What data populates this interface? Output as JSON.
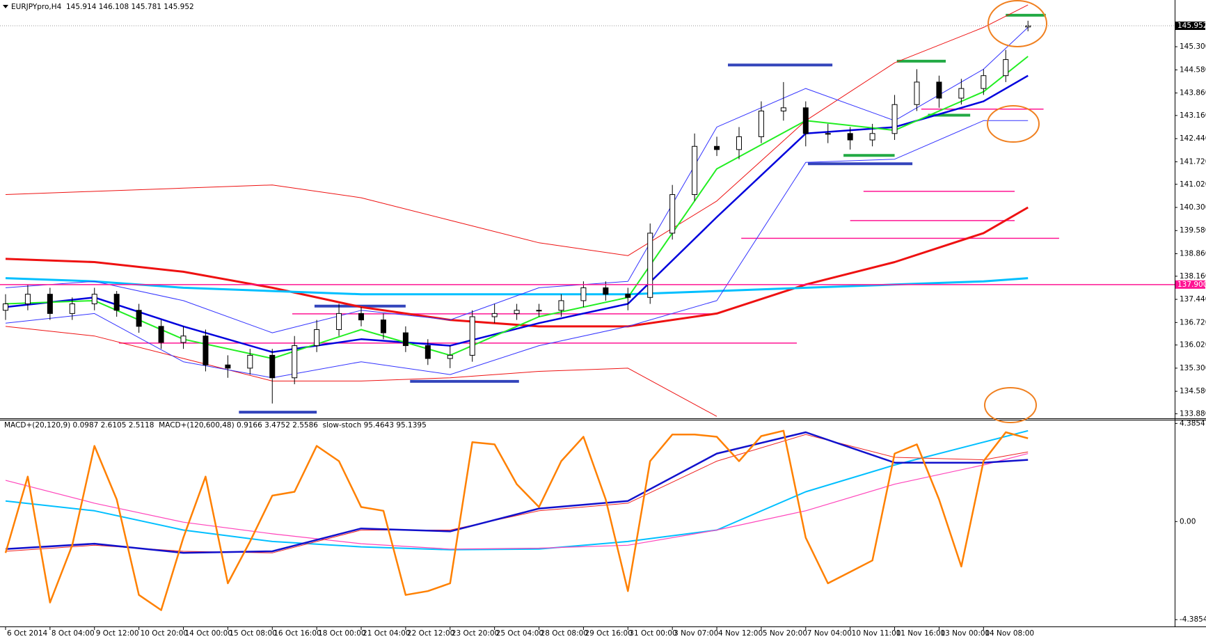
{
  "chart_data": [
    {
      "type": "candlestick",
      "title": "EURJPYpro,H4  145.914 146.108 145.781 145.952",
      "xlim": [
        -0.25,
        52.6
      ],
      "ylim": [
        133.76,
        146.71
      ],
      "yticks": [
        {
          "value": 133.88,
          "label": "133.880"
        },
        {
          "value": 134.58,
          "label": "134.580"
        },
        {
          "value": 135.3,
          "label": "135.300"
        },
        {
          "value": 136.02,
          "label": "136.020"
        },
        {
          "value": 136.72,
          "label": "136.720"
        },
        {
          "value": 137.44,
          "label": "137.440"
        },
        {
          "value": 138.16,
          "label": "138.160"
        },
        {
          "value": 138.86,
          "label": "138.860"
        },
        {
          "value": 139.58,
          "label": "139.580"
        },
        {
          "value": 140.3,
          "label": "140.300"
        },
        {
          "value": 141.02,
          "label": "141.020"
        },
        {
          "value": 141.72,
          "label": "141.720"
        },
        {
          "value": 142.44,
          "label": "142.440"
        },
        {
          "value": 143.16,
          "label": "143.160"
        },
        {
          "value": 143.86,
          "label": "143.860"
        },
        {
          "value": 144.58,
          "label": "144.580"
        },
        {
          "value": 145.3,
          "label": "145.300"
        }
      ],
      "x": [
        0,
        1,
        2,
        3,
        4,
        5,
        6,
        7,
        8,
        9,
        10,
        11,
        12,
        13,
        14,
        15,
        16,
        17,
        18,
        19,
        20,
        21,
        22,
        23,
        24,
        25,
        26,
        27,
        28,
        29,
        30,
        31,
        32,
        33,
        34,
        35,
        36,
        37,
        38,
        39,
        40,
        41,
        42,
        43,
        44,
        45,
        46
      ],
      "open": [
        137.1,
        137.3,
        137.6,
        137.0,
        137.3,
        137.6,
        137.1,
        136.6,
        136.1,
        136.3,
        135.4,
        135.3,
        135.7,
        135.0,
        136.0,
        136.5,
        137.0,
        136.8,
        136.4,
        136.0,
        135.6,
        135.7,
        136.9,
        137.0,
        137.1,
        137.1,
        137.4,
        137.8,
        137.6,
        137.5,
        139.5,
        140.7,
        142.2,
        142.1,
        142.5,
        143.3,
        143.4,
        142.6,
        142.6,
        142.4,
        142.6,
        143.5,
        144.2,
        143.7,
        144.0,
        144.4,
        145.914
      ],
      "high": [
        137.6,
        137.9,
        137.8,
        137.5,
        137.8,
        137.7,
        137.3,
        136.8,
        136.6,
        136.5,
        135.7,
        135.9,
        135.9,
        136.3,
        136.8,
        137.3,
        137.2,
        137.0,
        136.6,
        136.2,
        136.0,
        137.1,
        137.3,
        137.3,
        137.3,
        137.6,
        138.0,
        138.0,
        137.8,
        139.8,
        141.0,
        142.6,
        142.5,
        142.8,
        143.6,
        144.2,
        143.6,
        142.9,
        142.8,
        142.9,
        143.8,
        144.6,
        144.4,
        144.3,
        144.6,
        145.2,
        146.108
      ],
      "low": [
        136.8,
        137.1,
        136.8,
        136.8,
        137.1,
        136.9,
        136.4,
        135.9,
        135.9,
        135.2,
        135.0,
        135.1,
        134.2,
        134.8,
        135.8,
        136.3,
        136.6,
        136.2,
        135.8,
        135.4,
        135.3,
        135.5,
        136.7,
        136.8,
        136.9,
        136.9,
        137.2,
        137.4,
        137.1,
        137.3,
        139.3,
        140.5,
        141.9,
        141.8,
        142.3,
        143.0,
        142.2,
        142.3,
        142.1,
        142.2,
        142.4,
        143.3,
        143.4,
        143.5,
        143.8,
        144.2,
        145.781
      ],
      "close": [
        137.3,
        137.6,
        137.0,
        137.3,
        137.6,
        137.1,
        136.6,
        136.1,
        136.3,
        135.4,
        135.3,
        135.7,
        135.0,
        136.0,
        136.5,
        137.0,
        136.8,
        136.4,
        136.0,
        135.6,
        135.7,
        136.9,
        137.0,
        137.1,
        137.1,
        137.4,
        137.8,
        137.6,
        137.5,
        139.5,
        140.7,
        142.2,
        142.1,
        142.5,
        143.3,
        143.4,
        142.6,
        142.6,
        142.4,
        142.6,
        143.5,
        144.2,
        143.7,
        144.0,
        144.4,
        144.9,
        145.952
      ],
      "up_color": "#ffffff",
      "down_color": "#000000",
      "overlays": [
        {
          "color": "#ee1111",
          "width": 1,
          "x": [
            0,
            4,
            8,
            12,
            16,
            20,
            24,
            28,
            32,
            36,
            40,
            44,
            46
          ],
          "values": [
            140.7,
            140.8,
            140.9,
            141.0,
            140.6,
            139.9,
            139.2,
            138.8,
            140.5,
            143.0,
            144.8,
            145.9,
            146.6
          ]
        },
        {
          "color": "#ee1111",
          "width": 1,
          "x": [
            0,
            4,
            8,
            12,
            16,
            20,
            24,
            28,
            32,
            36,
            40,
            44,
            46
          ],
          "values": [
            136.6,
            136.3,
            135.6,
            134.9,
            134.9,
            135.0,
            135.2,
            135.3,
            133.8,
            null,
            null,
            null,
            null
          ]
        },
        {
          "color": "#ee1111",
          "width": 3,
          "x": [
            0,
            4,
            8,
            12,
            16,
            20,
            24,
            28,
            32,
            36,
            40,
            44,
            46
          ],
          "values": [
            138.7,
            138.6,
            138.3,
            137.8,
            137.2,
            136.8,
            136.6,
            136.6,
            137.0,
            137.9,
            138.6,
            139.5,
            140.3
          ]
        },
        {
          "color": "#00bfff",
          "width": 3,
          "x": [
            0,
            4,
            8,
            12,
            16,
            20,
            24,
            28,
            32,
            36,
            40,
            44,
            46
          ],
          "values": [
            138.1,
            138.0,
            137.8,
            137.7,
            137.6,
            137.6,
            137.6,
            137.6,
            137.7,
            137.8,
            137.9,
            138.0,
            138.1
          ]
        },
        {
          "color": "#3333ff",
          "width": 1,
          "x": [
            0,
            4,
            8,
            12,
            16,
            20,
            24,
            28,
            32,
            36,
            40,
            44,
            46
          ],
          "values": [
            137.8,
            138.0,
            137.4,
            136.4,
            137.1,
            136.8,
            137.8,
            138.0,
            142.8,
            144.0,
            143.0,
            144.6,
            145.9
          ]
        },
        {
          "color": "#3333ff",
          "width": 1,
          "x": [
            0,
            4,
            8,
            12,
            16,
            20,
            24,
            28,
            32,
            36,
            40,
            44,
            46
          ],
          "values": [
            136.7,
            137.0,
            135.5,
            135.0,
            135.5,
            135.1,
            136.0,
            136.6,
            137.4,
            141.7,
            141.8,
            143.0,
            143.0
          ]
        },
        {
          "color": "#0000dd",
          "width": 2.5,
          "x": [
            0,
            4,
            8,
            12,
            16,
            20,
            24,
            28,
            32,
            36,
            40,
            44,
            46
          ],
          "values": [
            137.2,
            137.5,
            136.6,
            135.8,
            136.2,
            136.0,
            136.7,
            137.3,
            140.0,
            142.6,
            142.8,
            143.6,
            144.4
          ]
        },
        {
          "color": "#22ee22",
          "width": 2,
          "x": [
            0,
            4,
            8,
            12,
            16,
            20,
            24,
            28,
            32,
            36,
            40,
            44,
            46
          ],
          "values": [
            137.3,
            137.4,
            136.2,
            135.6,
            136.5,
            135.7,
            136.9,
            137.5,
            141.5,
            143.0,
            142.7,
            143.9,
            145.0
          ]
        }
      ],
      "levels": [
        {
          "color": "#ff1493",
          "width": 1.5,
          "value": 136.99,
          "x": [
            12.9,
            31.7
          ]
        },
        {
          "color": "#ff1493",
          "width": 1.5,
          "value": 136.08,
          "x": [
            5.1,
            35.6
          ]
        },
        {
          "color": "#ff1493",
          "width": 1.5,
          "value": 140.8,
          "x": [
            38.6,
            45.4
          ]
        },
        {
          "color": "#ff1493",
          "width": 1.5,
          "value": 139.89,
          "x": [
            38.0,
            45.4
          ]
        },
        {
          "color": "#ff1493",
          "width": 1.5,
          "value": 139.34,
          "x": [
            33.1,
            47.4
          ]
        },
        {
          "color": "#ff1493",
          "width": 1.5,
          "value": 143.36,
          "x": [
            41.2,
            46.7
          ]
        },
        {
          "color": "#3344bb",
          "width": 4,
          "value": 144.73,
          "x": [
            32.5,
            37.2
          ]
        },
        {
          "color": "#3344bb",
          "width": 4,
          "value": 137.23,
          "x": [
            13.9,
            18.0
          ]
        },
        {
          "color": "#3344bb",
          "width": 4,
          "value": 133.93,
          "x": [
            10.5,
            14.0
          ]
        },
        {
          "color": "#3344bb",
          "width": 4,
          "value": 134.89,
          "x": [
            18.2,
            23.1
          ]
        },
        {
          "color": "#3344bb",
          "width": 4,
          "value": 141.66,
          "x": [
            36.1,
            40.8
          ]
        },
        {
          "color": "#22aa44",
          "width": 4,
          "value": 146.28,
          "x": [
            45.0,
            46.8
          ]
        },
        {
          "color": "#22aa44",
          "width": 4,
          "value": 144.85,
          "x": [
            40.1,
            42.3
          ]
        },
        {
          "color": "#22aa44",
          "width": 4,
          "value": 143.17,
          "x": [
            41.5,
            43.4
          ]
        },
        {
          "color": "#22aa44",
          "width": 4,
          "value": 141.92,
          "x": [
            37.7,
            40.0
          ]
        }
      ],
      "price_lines": [
        {
          "value": 145.952,
          "label": "145.952",
          "color": "#000000",
          "style": "dotted"
        },
        {
          "value": 137.9,
          "label": "137.900",
          "color": "#ff1493",
          "style": "solid"
        }
      ]
    },
    {
      "type": "line",
      "title": "MACD+(20,120,9) 0.0987 2.6105 2.5118  MACD+(120,600,48) 0.9166 3.4752 2.5586  slow-stoch 95.4643 95.1395",
      "xlim": [
        -0.25,
        52.6
      ],
      "ylim": [
        -4.69,
        4.52
      ],
      "yticks": [
        4.3854,
        {
          "value": 0,
          "label": "0.00"
        },
        -4.3854
      ],
      "xticks": [
        {
          "value": 0,
          "label": "6 Oct 2014"
        },
        {
          "value": 2,
          "label": "8 Oct 04:00"
        },
        {
          "value": 4,
          "label": "9 Oct 12:00"
        },
        {
          "value": 6,
          "label": "10 Oct 20:00"
        },
        {
          "value": 8,
          "label": "14 Oct 00:00"
        },
        {
          "value": 10,
          "label": "15 Oct 08:00"
        },
        {
          "value": 12,
          "label": "16 Oct 16:00"
        },
        {
          "value": 14,
          "label": "18 Oct 00:00"
        },
        {
          "value": 16,
          "label": "21 Oct 04:00"
        },
        {
          "value": 18,
          "label": "22 Oct 12:00"
        },
        {
          "value": 20,
          "label": "23 Oct 20:00"
        },
        {
          "value": 22,
          "label": "25 Oct 04:00"
        },
        {
          "value": 24,
          "label": "28 Oct 08:00"
        },
        {
          "value": 26,
          "label": "29 Oct 16:00"
        },
        {
          "value": 28,
          "label": "31 Oct 00:00"
        },
        {
          "value": 30,
          "label": "3 Nov 07:00"
        },
        {
          "value": 32,
          "label": "4 Nov 12:00"
        },
        {
          "value": 34,
          "label": "5 Nov 20:00"
        },
        {
          "value": 36,
          "label": "7 Nov 04:00"
        },
        {
          "value": 38,
          "label": "10 Nov 11:00"
        },
        {
          "value": 40,
          "label": "11 Nov 16:00"
        },
        {
          "value": 42,
          "label": "13 Nov 00:00"
        },
        {
          "value": 44,
          "label": "14 Nov 08:00"
        }
      ],
      "series": [
        {
          "color": "#00bfff",
          "width": 2,
          "x": [
            0,
            4,
            8,
            12,
            16,
            20,
            24,
            28,
            32,
            36,
            40,
            44,
            46
          ],
          "values": [
            0.92,
            0.48,
            -0.38,
            -0.89,
            -1.13,
            -1.26,
            -1.23,
            -0.89,
            -0.38,
            1.33,
            2.53,
            3.55,
            4.06
          ]
        },
        {
          "color": "#ff44bb",
          "width": 1.2,
          "x": [
            0,
            4,
            8,
            12,
            16,
            20,
            24,
            28,
            32,
            36,
            40,
            44,
            46
          ],
          "values": [
            1.84,
            0.82,
            -0.03,
            -0.55,
            -0.99,
            -1.23,
            -1.19,
            -1.06,
            -0.38,
            0.48,
            1.67,
            2.53,
            3.04
          ]
        },
        {
          "color": "#ee2222",
          "width": 1,
          "x": [
            0,
            4,
            8,
            12,
            16,
            20,
            24,
            28,
            32,
            36,
            40,
            44,
            46
          ],
          "values": [
            -1.33,
            -1.06,
            -1.33,
            -1.4,
            -0.38,
            -0.38,
            0.48,
            0.82,
            2.7,
            3.89,
            2.87,
            2.76,
            3.11
          ]
        },
        {
          "color": "#1111cc",
          "width": 2.5,
          "x": [
            0,
            4,
            8,
            12,
            16,
            20,
            24,
            28,
            32,
            36,
            40,
            44,
            46
          ],
          "values": [
            -1.23,
            -0.99,
            -1.4,
            -1.33,
            -0.31,
            -0.44,
            0.58,
            0.92,
            3.04,
            3.99,
            2.63,
            2.63,
            2.76
          ]
        },
        {
          "color": "#ff8000",
          "width": 2.5,
          "x": [
            0,
            1,
            2,
            3,
            4,
            5,
            6,
            7,
            8,
            9,
            10,
            11,
            12,
            13,
            14,
            15,
            16,
            17,
            18,
            19,
            20,
            21,
            22,
            23,
            24,
            25,
            26,
            27,
            28,
            29,
            30,
            31,
            32,
            33,
            34,
            35,
            36,
            37,
            38,
            39,
            40,
            41,
            42,
            43,
            44,
            45,
            46
          ],
          "values": [
            -1.4,
            2.01,
            -3.62,
            -1.06,
            3.38,
            0.99,
            -3.28,
            -3.96,
            -0.72,
            2.01,
            -2.76,
            -0.89,
            1.16,
            1.33,
            3.38,
            2.7,
            0.65,
            0.48,
            -3.28,
            -3.11,
            -2.76,
            3.55,
            3.45,
            1.67,
            0.65,
            2.7,
            3.79,
            0.99,
            -3.11,
            2.7,
            3.89,
            3.89,
            3.79,
            2.7,
            3.82,
            4.06,
            -0.72,
            -2.76,
            -2.25,
            -1.74,
            3.04,
            3.45,
            0.99,
            -2.01,
            2.7,
            3.99,
            3.72
          ]
        }
      ]
    }
  ]
}
